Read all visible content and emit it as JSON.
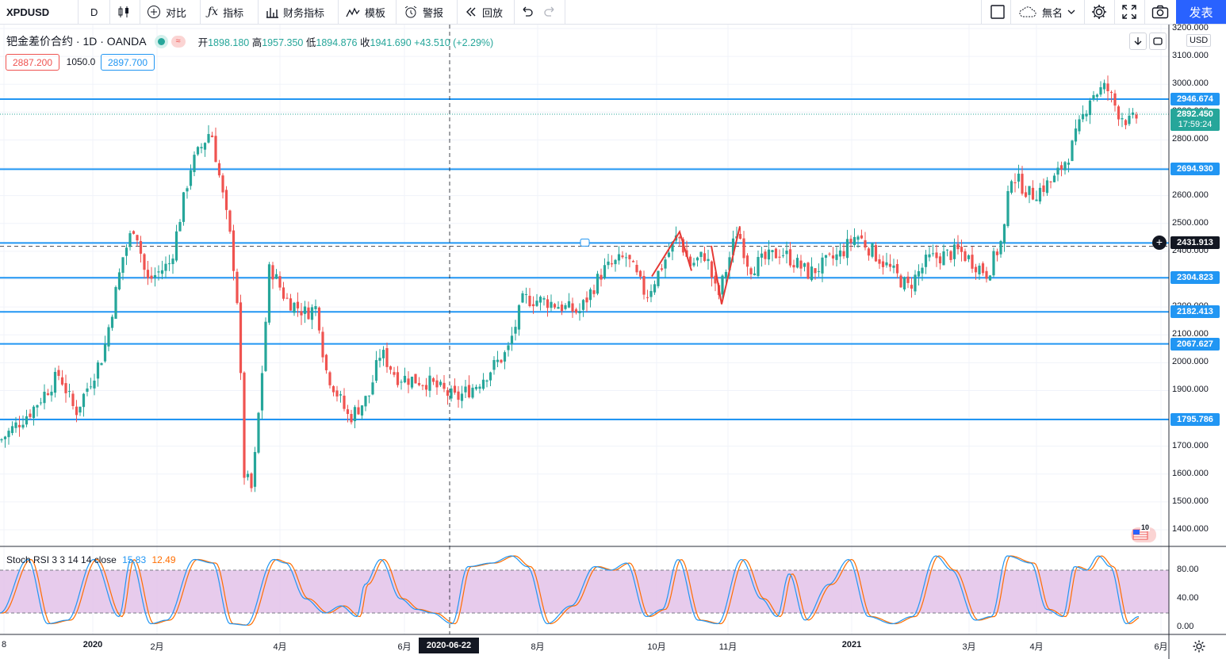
{
  "toolbar": {
    "symbol": "XPDUSD",
    "interval": "D",
    "compare": "对比",
    "indicators": "指标",
    "financials": "财务指标",
    "templates": "模板",
    "alert": "警报",
    "replay": "回放",
    "layout_name": "無名",
    "publish": "发表"
  },
  "legend": {
    "title": "钯金差价合约 · 1D · OANDA",
    "open_label": "开",
    "open": "1898.180",
    "high_label": "高",
    "high": "1957.350",
    "low_label": "低",
    "low": "1894.876",
    "close_label": "收",
    "close": "1941.690",
    "change": "+43.510 (+2.29%)",
    "sell": "2887.200",
    "spread": "1050.0",
    "buy": "2897.700"
  },
  "price_axis": {
    "currency": "USD",
    "ticks": [
      "3200.000",
      "3100.000",
      "3000.000",
      "2900.000",
      "2800.000",
      "2700.000",
      "2600.000",
      "2500.000",
      "2400.000",
      "2300.000",
      "2200.000",
      "2100.000",
      "2000.000",
      "1900.000",
      "1800.000",
      "1700.000",
      "1600.000",
      "1500.000",
      "1400.000"
    ],
    "current_price": "2892.450",
    "countdown": "17:59:24",
    "crosshair_price": "2431.913"
  },
  "horizontal_lines": [
    "2946.674",
    "2694.930",
    "2304.823",
    "2182.413",
    "2067.627",
    "1795.786"
  ],
  "stoch_axis_ticks": [
    "80.00",
    "40.00",
    "0.00"
  ],
  "stoch_legend": {
    "name": "Stoch RSI 3 3 14 14 close",
    "k": "15.83",
    "d": "12.49"
  },
  "time_axis": {
    "labels": [
      "8",
      "2020",
      "2月",
      "4月",
      "6月",
      "8月",
      "10月",
      "11月",
      "2021",
      "3月",
      "4月",
      "6月"
    ],
    "crosshair_date": "2020-06-22"
  },
  "colors": {
    "up": "#26a69a",
    "down": "#ef5350",
    "hline": "#2196f3",
    "accent": "#2962ff",
    "stoch_k": "#2196f3",
    "stoch_d": "#ff6d00",
    "stoch_band": "#e1bee7"
  },
  "chart_data": {
    "type": "candlestick",
    "symbol": "XPDUSD",
    "x": [
      "2019-08",
      "2019-09",
      "2019-10",
      "2019-11",
      "2019-12",
      "2020-01",
      "2020-02",
      "2020-03",
      "2020-04",
      "2020-05",
      "2020-06",
      "2020-07",
      "2020-08",
      "2020-09",
      "2020-10",
      "2020-11",
      "2020-12",
      "2021-01",
      "2021-02",
      "2021-03",
      "2021-04",
      "2021-05"
    ],
    "close": [
      1450,
      1610,
      1790,
      1850,
      1960,
      2400,
      2600,
      2200,
      2050,
      1920,
      1870,
      1980,
      2170,
      2300,
      2380,
      2350,
      2330,
      2380,
      2350,
      2600,
      2850,
      2900
    ],
    "ylim": [
      1350,
      3230
    ],
    "grid": true,
    "overlays": [
      {
        "type": "hline",
        "value": 2946.674
      },
      {
        "type": "hline",
        "value": 2694.93
      },
      {
        "type": "hline",
        "value": 2430
      },
      {
        "type": "hline",
        "value": 2304.823
      },
      {
        "type": "hline",
        "value": 2182.413
      },
      {
        "type": "hline",
        "value": 2067.627
      },
      {
        "type": "hline",
        "value": 1795.786
      }
    ],
    "indicator": {
      "name": "Stoch RSI 3 3 14 14 close",
      "k_last": 15.83,
      "d_last": 12.49,
      "bands": [
        20,
        80
      ]
    }
  }
}
